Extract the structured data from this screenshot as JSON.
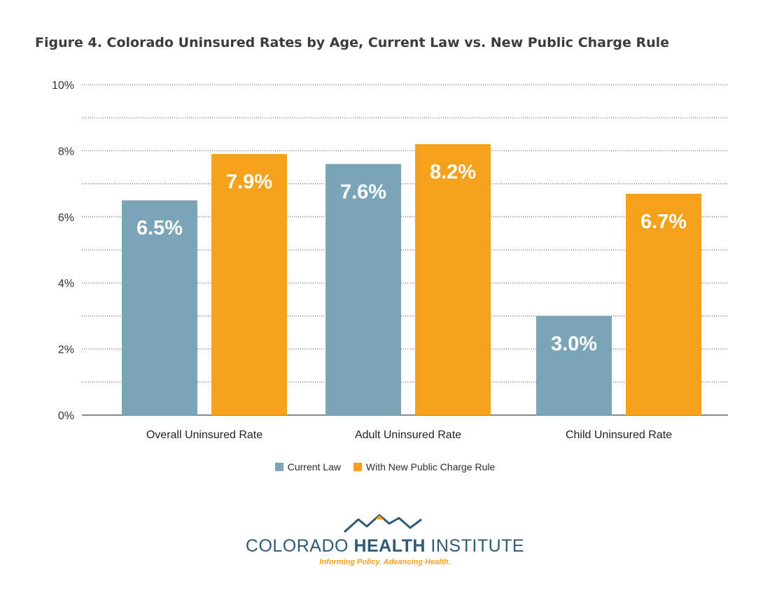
{
  "title": "Figure 4. Colorado Uninsured Rates by Age, Current Law vs. New Public Charge Rule",
  "chart_data": {
    "type": "bar",
    "categories": [
      "Overall Uninsured Rate",
      "Adult Uninsured Rate",
      "Child Uninsured Rate"
    ],
    "series": [
      {
        "name": "Current Law",
        "values": [
          6.5,
          7.6,
          3.0
        ],
        "labels": [
          "6.5%",
          "7.6%",
          "3.0%"
        ],
        "color": "#7aa5b9"
      },
      {
        "name": "With New Public Charge Rule",
        "values": [
          7.9,
          8.2,
          6.7
        ],
        "labels": [
          "7.9%",
          "8.2%",
          "6.7%"
        ],
        "color": "#f4a21c"
      }
    ],
    "ylim": [
      0,
      10
    ],
    "yticks": [
      0,
      2,
      4,
      6,
      8,
      10
    ],
    "ytick_labels": [
      "0%",
      "2%",
      "4%",
      "6%",
      "8%",
      "10%"
    ],
    "grid": true,
    "grid_step": 1,
    "legend_position": "bottom-center",
    "xlabel": "",
    "ylabel": ""
  },
  "logo": {
    "name_light": "COLORADO",
    "name_bold": "HEALTH",
    "name_end": "INSTITUTE",
    "tagline": "Informing Policy. Advancing Health.",
    "colors": {
      "primary": "#2e5a78",
      "accent": "#f4a21c"
    }
  }
}
